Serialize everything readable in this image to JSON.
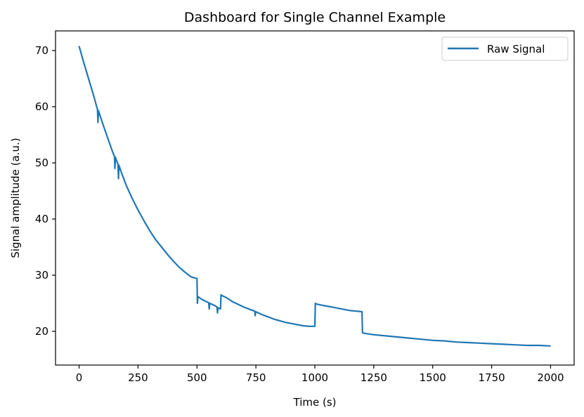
{
  "chart_data": {
    "type": "line",
    "title": "Dashboard for Single Channel Example",
    "xlabel": "Time (s)",
    "ylabel": "Signal amplitude (a.u.)",
    "xlim": [
      -100,
      2100
    ],
    "ylim": [
      14,
      73.5
    ],
    "xticks": [
      0,
      250,
      500,
      750,
      1000,
      1250,
      1500,
      1750,
      2000
    ],
    "yticks": [
      20,
      30,
      40,
      50,
      60,
      70
    ],
    "grid": false,
    "legend_position": "top-right",
    "series": [
      {
        "name": "Raw Signal",
        "color": "#1f77b4",
        "x": [
          0,
          20,
          40,
          60,
          78,
          80,
          82,
          100,
          120,
          140,
          150,
          152,
          154,
          160,
          165,
          167,
          169,
          180,
          190,
          200,
          225,
          250,
          275,
          300,
          325,
          350,
          375,
          400,
          425,
          450,
          475,
          500,
          502,
          504,
          520,
          540,
          550,
          552,
          554,
          580,
          585,
          587,
          589,
          600,
          602,
          604,
          625,
          650,
          675,
          700,
          725,
          745,
          747,
          749,
          760,
          775,
          800,
          825,
          850,
          875,
          900,
          925,
          950,
          975,
          1000,
          1002,
          1004,
          1025,
          1050,
          1075,
          1100,
          1125,
          1150,
          1175,
          1200,
          1202,
          1204,
          1250,
          1300,
          1350,
          1400,
          1450,
          1500,
          1550,
          1600,
          1650,
          1700,
          1750,
          1800,
          1850,
          1900,
          1950,
          2000
        ],
        "y": [
          70.8,
          67.8,
          65.0,
          62.2,
          59.5,
          57.2,
          59.3,
          57.0,
          54.6,
          52.2,
          51.1,
          49.0,
          51.0,
          50.3,
          49.7,
          47.2,
          49.6,
          48.2,
          47.1,
          46.0,
          43.7,
          41.6,
          39.7,
          37.9,
          36.3,
          35.0,
          33.7,
          32.5,
          31.4,
          30.5,
          29.7,
          29.4,
          25.0,
          26.2,
          25.7,
          25.3,
          25.1,
          24.0,
          25.0,
          24.5,
          24.3,
          23.3,
          24.2,
          24.0,
          26.5,
          26.4,
          26.0,
          25.3,
          24.8,
          24.3,
          23.9,
          23.6,
          22.8,
          23.5,
          23.3,
          23.0,
          22.6,
          22.2,
          21.9,
          21.6,
          21.4,
          21.2,
          21.0,
          20.9,
          20.9,
          25.0,
          24.9,
          24.7,
          24.5,
          24.3,
          24.1,
          23.9,
          23.7,
          23.6,
          23.5,
          19.8,
          19.7,
          19.4,
          19.2,
          19.0,
          18.8,
          18.6,
          18.4,
          18.3,
          18.1,
          18.0,
          17.9,
          17.8,
          17.7,
          17.6,
          17.5,
          17.5,
          17.4
        ]
      }
    ]
  }
}
